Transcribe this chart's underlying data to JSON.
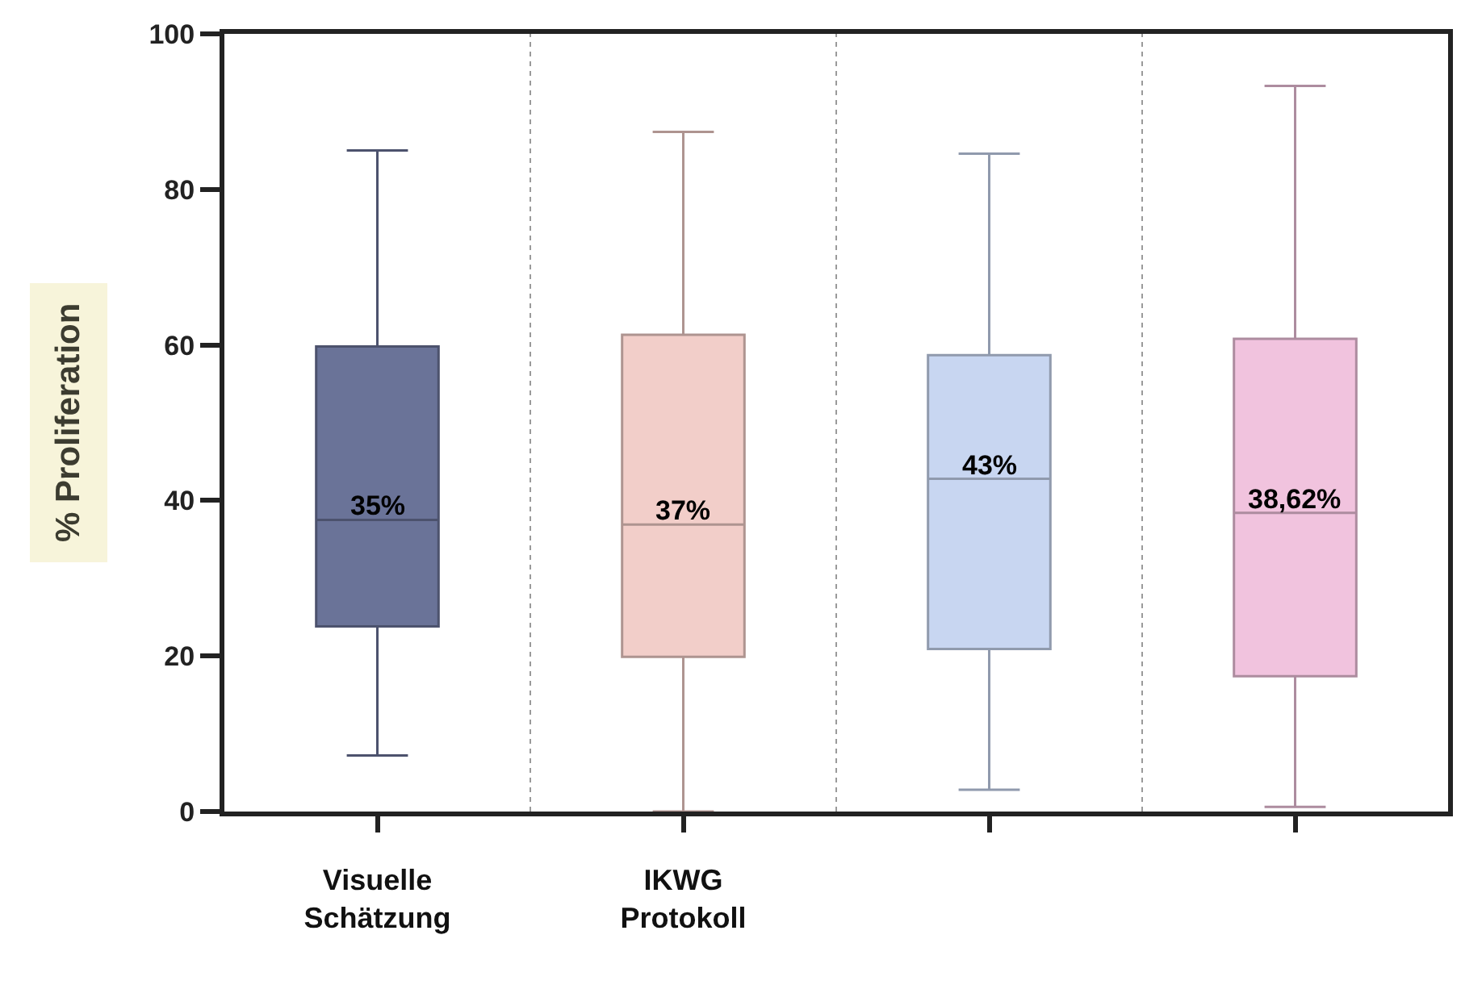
{
  "chart_data": {
    "type": "box",
    "ylabel": "% Proliferation",
    "categories": [
      "Visuelle Schätzung",
      "IKWG Protokoll",
      null,
      null
    ],
    "colors": [
      "#6a7398",
      "#f2cec9",
      "#c8d6f1",
      "#f1c3de"
    ],
    "boxes": [
      {
        "low": 7.2,
        "q1": 23.8,
        "median": 37.5,
        "q3": 59.8,
        "high": 85.0
      },
      {
        "low": 0,
        "q1": 19.9,
        "median": 36.9,
        "q3": 61.3,
        "high": 87.4
      },
      {
        "low": 2.8,
        "q1": 20.9,
        "median": 42.8,
        "q3": 58.7,
        "high": 84.6
      },
      {
        "low": 0.6,
        "q1": 17.4,
        "median": 38.4,
        "q3": 60.8,
        "high": 93.3
      }
    ],
    "ylim": [
      0,
      100
    ],
    "yticks": [
      0,
      20,
      40,
      60,
      80,
      100
    ],
    "grid": "x",
    "annotations": [
      {
        "text": "35%",
        "x": "Visuelle Schätzung",
        "y": 37.5
      },
      {
        "text": "37%",
        "x": "IKWG Protokoll",
        "y": 36.9
      },
      {
        "text": "43%",
        "y": 42.8
      },
      {
        "text": "38,62%",
        "y": 38.4
      }
    ]
  }
}
